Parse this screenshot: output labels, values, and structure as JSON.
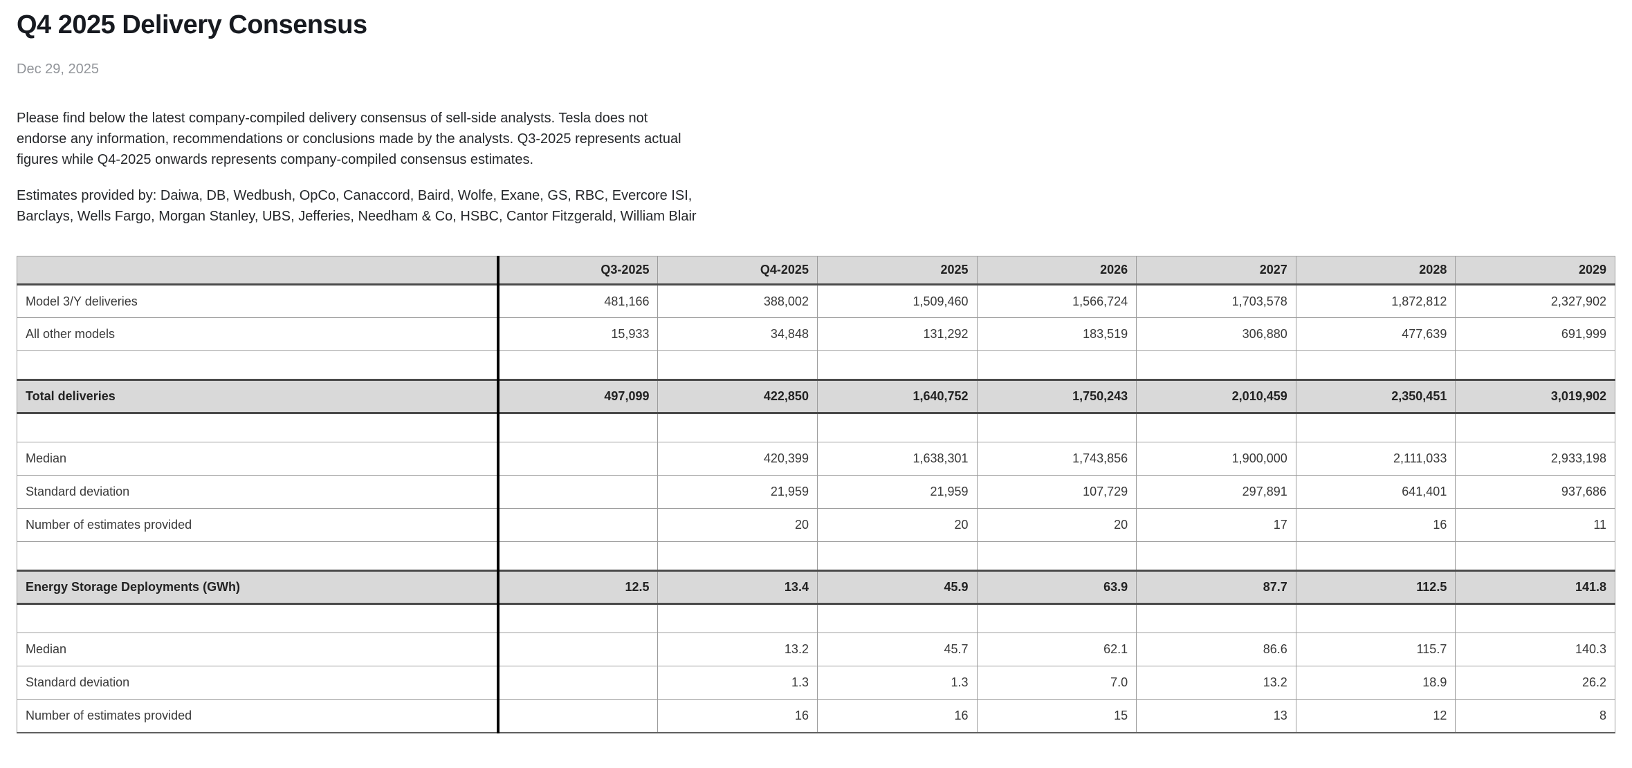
{
  "page": {
    "title": "Q4 2025 Delivery Consensus",
    "date": "Dec 29, 2025",
    "intro": "Please find below the latest company-compiled delivery consensus of sell-side analysts. Tesla does not endorse any information, recommendations or conclusions made by the analysts. Q3-2025 represents actual figures while Q4-2025 onwards represents company-compiled consensus estimates.",
    "estimates_note": "Estimates provided by: Daiwa, DB, Wedbush, OpCo, Canaccord, Baird, Wolfe, Exane, GS, RBC, Evercore ISI, Barclays, Wells Fargo, Morgan Stanley, UBS, Jefferies, Needham & Co, HSBC, Cantor Fitzgerald, William Blair"
  },
  "colors": {
    "header_bg": "#d9d9d9",
    "section_bg": "#d9d9d9",
    "grid_border": "#9c9c9c",
    "heavy_border": "#4a4a4a",
    "label_divider": "#000000",
    "title_text": "#171a20",
    "muted_text": "#92959a"
  },
  "table": {
    "columns": [
      "",
      "Q3-2025",
      "Q4-2025",
      "2025",
      "2026",
      "2027",
      "2028",
      "2029"
    ],
    "rows": [
      {
        "type": "data",
        "label": "Model 3/Y deliveries",
        "values": [
          "481,166",
          "388,002",
          "1,509,460",
          "1,566,724",
          "1,703,578",
          "1,872,812",
          "2,327,902"
        ]
      },
      {
        "type": "data",
        "label": "All other models",
        "values": [
          "15,933",
          "34,848",
          "131,292",
          "183,519",
          "306,880",
          "477,639",
          "691,999"
        ]
      },
      {
        "type": "spacer",
        "label": "",
        "values": [
          "",
          "",
          "",
          "",
          "",
          "",
          ""
        ]
      },
      {
        "type": "section",
        "label": "Total deliveries",
        "values": [
          "497,099",
          "422,850",
          "1,640,752",
          "1,750,243",
          "2,010,459",
          "2,350,451",
          "3,019,902"
        ]
      },
      {
        "type": "spacer",
        "label": "",
        "values": [
          "",
          "",
          "",
          "",
          "",
          "",
          ""
        ]
      },
      {
        "type": "data",
        "label": "Median",
        "values": [
          "",
          "420,399",
          "1,638,301",
          "1,743,856",
          "1,900,000",
          "2,111,033",
          "2,933,198"
        ]
      },
      {
        "type": "data",
        "label": "Standard deviation",
        "values": [
          "",
          "21,959",
          "21,959",
          "107,729",
          "297,891",
          "641,401",
          "937,686"
        ]
      },
      {
        "type": "data",
        "label": "Number of estimates provided",
        "values": [
          "",
          "20",
          "20",
          "20",
          "17",
          "16",
          "11"
        ]
      },
      {
        "type": "spacer",
        "label": "",
        "values": [
          "",
          "",
          "",
          "",
          "",
          "",
          ""
        ]
      },
      {
        "type": "section",
        "label": "Energy Storage Deployments (GWh)",
        "values": [
          "12.5",
          "13.4",
          "45.9",
          "63.9",
          "87.7",
          "112.5",
          "141.8"
        ]
      },
      {
        "type": "spacer",
        "label": "",
        "values": [
          "",
          "",
          "",
          "",
          "",
          "",
          ""
        ]
      },
      {
        "type": "data",
        "label": "Median",
        "values": [
          "",
          "13.2",
          "45.7",
          "62.1",
          "86.6",
          "115.7",
          "140.3"
        ]
      },
      {
        "type": "data",
        "label": "Standard deviation",
        "values": [
          "",
          "1.3",
          "1.3",
          "7.0",
          "13.2",
          "18.9",
          "26.2"
        ]
      },
      {
        "type": "data",
        "label": "Number of estimates provided",
        "values": [
          "",
          "16",
          "16",
          "15",
          "13",
          "12",
          "8"
        ]
      }
    ]
  }
}
